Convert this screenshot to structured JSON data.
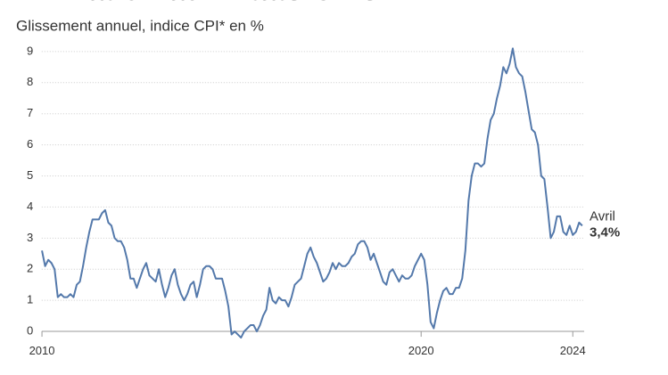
{
  "chart_data": {
    "type": "line",
    "title": "L'inflation aux Etats-Unis",
    "subtitle": "Glissement annuel, indice CPI* en %",
    "x": [
      2010,
      2010.083,
      2010.167,
      2010.25,
      2010.333,
      2010.417,
      2010.5,
      2010.583,
      2010.667,
      2010.75,
      2010.833,
      2010.917,
      2011,
      2011.083,
      2011.167,
      2011.25,
      2011.333,
      2011.417,
      2011.5,
      2011.583,
      2011.667,
      2011.75,
      2011.833,
      2011.917,
      2012,
      2012.083,
      2012.167,
      2012.25,
      2012.333,
      2012.417,
      2012.5,
      2012.583,
      2012.667,
      2012.75,
      2012.833,
      2012.917,
      2013,
      2013.083,
      2013.167,
      2013.25,
      2013.333,
      2013.417,
      2013.5,
      2013.583,
      2013.667,
      2013.75,
      2013.833,
      2013.917,
      2014,
      2014.083,
      2014.167,
      2014.25,
      2014.333,
      2014.417,
      2014.5,
      2014.583,
      2014.667,
      2014.75,
      2014.833,
      2014.917,
      2015,
      2015.083,
      2015.167,
      2015.25,
      2015.333,
      2015.417,
      2015.5,
      2015.583,
      2015.667,
      2015.75,
      2015.833,
      2015.917,
      2016,
      2016.083,
      2016.167,
      2016.25,
      2016.333,
      2016.417,
      2016.5,
      2016.583,
      2016.667,
      2016.75,
      2016.833,
      2016.917,
      2017,
      2017.083,
      2017.167,
      2017.25,
      2017.333,
      2017.417,
      2017.5,
      2017.583,
      2017.667,
      2017.75,
      2017.833,
      2017.917,
      2018,
      2018.083,
      2018.167,
      2018.25,
      2018.333,
      2018.417,
      2018.5,
      2018.583,
      2018.667,
      2018.75,
      2018.833,
      2018.917,
      2019,
      2019.083,
      2019.167,
      2019.25,
      2019.333,
      2019.417,
      2019.5,
      2019.583,
      2019.667,
      2019.75,
      2019.833,
      2019.917,
      2020,
      2020.083,
      2020.167,
      2020.25,
      2020.333,
      2020.417,
      2020.5,
      2020.583,
      2020.667,
      2020.75,
      2020.833,
      2020.917,
      2021,
      2021.083,
      2021.167,
      2021.25,
      2021.333,
      2021.417,
      2021.5,
      2021.583,
      2021.667,
      2021.75,
      2021.833,
      2021.917,
      2022,
      2022.083,
      2022.167,
      2022.25,
      2022.333,
      2022.417,
      2022.5,
      2022.583,
      2022.667,
      2022.75,
      2022.833,
      2022.917,
      2023,
      2023.083,
      2023.167,
      2023.25,
      2023.333,
      2023.417,
      2023.5,
      2023.583,
      2023.667,
      2023.75,
      2023.833,
      2023.917,
      2024,
      2024.083,
      2024.167,
      2024.25
    ],
    "series": [
      {
        "color": "#5479ab",
        "values": [
          2.6,
          2.1,
          2.3,
          2.2,
          2.0,
          1.1,
          1.2,
          1.1,
          1.1,
          1.2,
          1.1,
          1.5,
          1.6,
          2.1,
          2.7,
          3.2,
          3.6,
          3.6,
          3.6,
          3.8,
          3.9,
          3.5,
          3.4,
          3.0,
          2.9,
          2.9,
          2.7,
          2.3,
          1.7,
          1.7,
          1.4,
          1.7,
          2.0,
          2.2,
          1.8,
          1.7,
          1.6,
          2.0,
          1.5,
          1.1,
          1.4,
          1.8,
          2.0,
          1.5,
          1.2,
          1.0,
          1.2,
          1.5,
          1.6,
          1.1,
          1.5,
          2.0,
          2.1,
          2.1,
          2.0,
          1.7,
          1.7,
          1.7,
          1.3,
          0.8,
          -0.1,
          0.0,
          -0.1,
          -0.2,
          0.0,
          0.1,
          0.2,
          0.2,
          0.0,
          0.2,
          0.5,
          0.7,
          1.4,
          1.0,
          0.9,
          1.1,
          1.0,
          1.0,
          0.8,
          1.1,
          1.5,
          1.6,
          1.7,
          2.1,
          2.5,
          2.7,
          2.4,
          2.2,
          1.9,
          1.6,
          1.7,
          1.9,
          2.2,
          2.0,
          2.2,
          2.1,
          2.1,
          2.2,
          2.4,
          2.5,
          2.8,
          2.9,
          2.9,
          2.7,
          2.3,
          2.5,
          2.2,
          1.9,
          1.6,
          1.5,
          1.9,
          2.0,
          1.8,
          1.6,
          1.8,
          1.7,
          1.7,
          1.8,
          2.1,
          2.3,
          2.5,
          2.3,
          1.5,
          0.3,
          0.1,
          0.6,
          1.0,
          1.3,
          1.4,
          1.2,
          1.2,
          1.4,
          1.4,
          1.7,
          2.6,
          4.2,
          5.0,
          5.4,
          5.4,
          5.3,
          5.4,
          6.2,
          6.8,
          7.0,
          7.5,
          7.9,
          8.5,
          8.3,
          8.6,
          9.1,
          8.5,
          8.3,
          8.2,
          7.7,
          7.1,
          6.5,
          6.4,
          6.0,
          5.0,
          4.9,
          4.0,
          3.0,
          3.2,
          3.7,
          3.7,
          3.2,
          3.1,
          3.4,
          3.1,
          3.2,
          3.5,
          3.4
        ]
      }
    ],
    "last_point": {
      "label": "Avril",
      "value": 3.4,
      "value_label": "3,4%"
    },
    "xlim": [
      2009.9,
      2024.3
    ],
    "xticks": [
      2010,
      2020,
      2024
    ],
    "ylim": [
      -0.5,
      9.3
    ],
    "yticks": [
      0,
      1,
      2,
      3,
      4,
      5,
      6,
      7,
      8,
      9
    ],
    "grid": true
  }
}
